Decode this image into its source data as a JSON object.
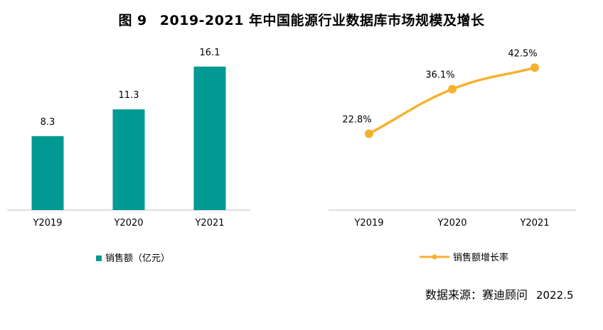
{
  "title": {
    "figure": "图 9",
    "text": "2019-2021 年中国能源行业数据库市场规模及增长"
  },
  "chart_data": [
    {
      "type": "bar",
      "categories": [
        "Y2019",
        "Y2020",
        "Y2021"
      ],
      "series": [
        {
          "name": "销售额（亿元）",
          "values": [
            8.3,
            11.3,
            16.1
          ],
          "labels": [
            "8.3",
            "11.3",
            "16.1"
          ],
          "color": "#009a93"
        }
      ],
      "ylim": [
        0,
        18
      ],
      "grid": false,
      "legend_position": "bottom"
    },
    {
      "type": "line",
      "categories": [
        "Y2019",
        "Y2020",
        "Y2021"
      ],
      "series": [
        {
          "name": "销售额增长率",
          "values": [
            22.8,
            36.1,
            42.5
          ],
          "labels": [
            "22.8%",
            "36.1%",
            "42.5%"
          ],
          "color": "#f6b12e"
        }
      ],
      "ylim": [
        0,
        50
      ],
      "grid": false,
      "legend_position": "bottom"
    }
  ],
  "source": {
    "label": "数据来源：赛迪顾问",
    "date": "2022.5"
  }
}
